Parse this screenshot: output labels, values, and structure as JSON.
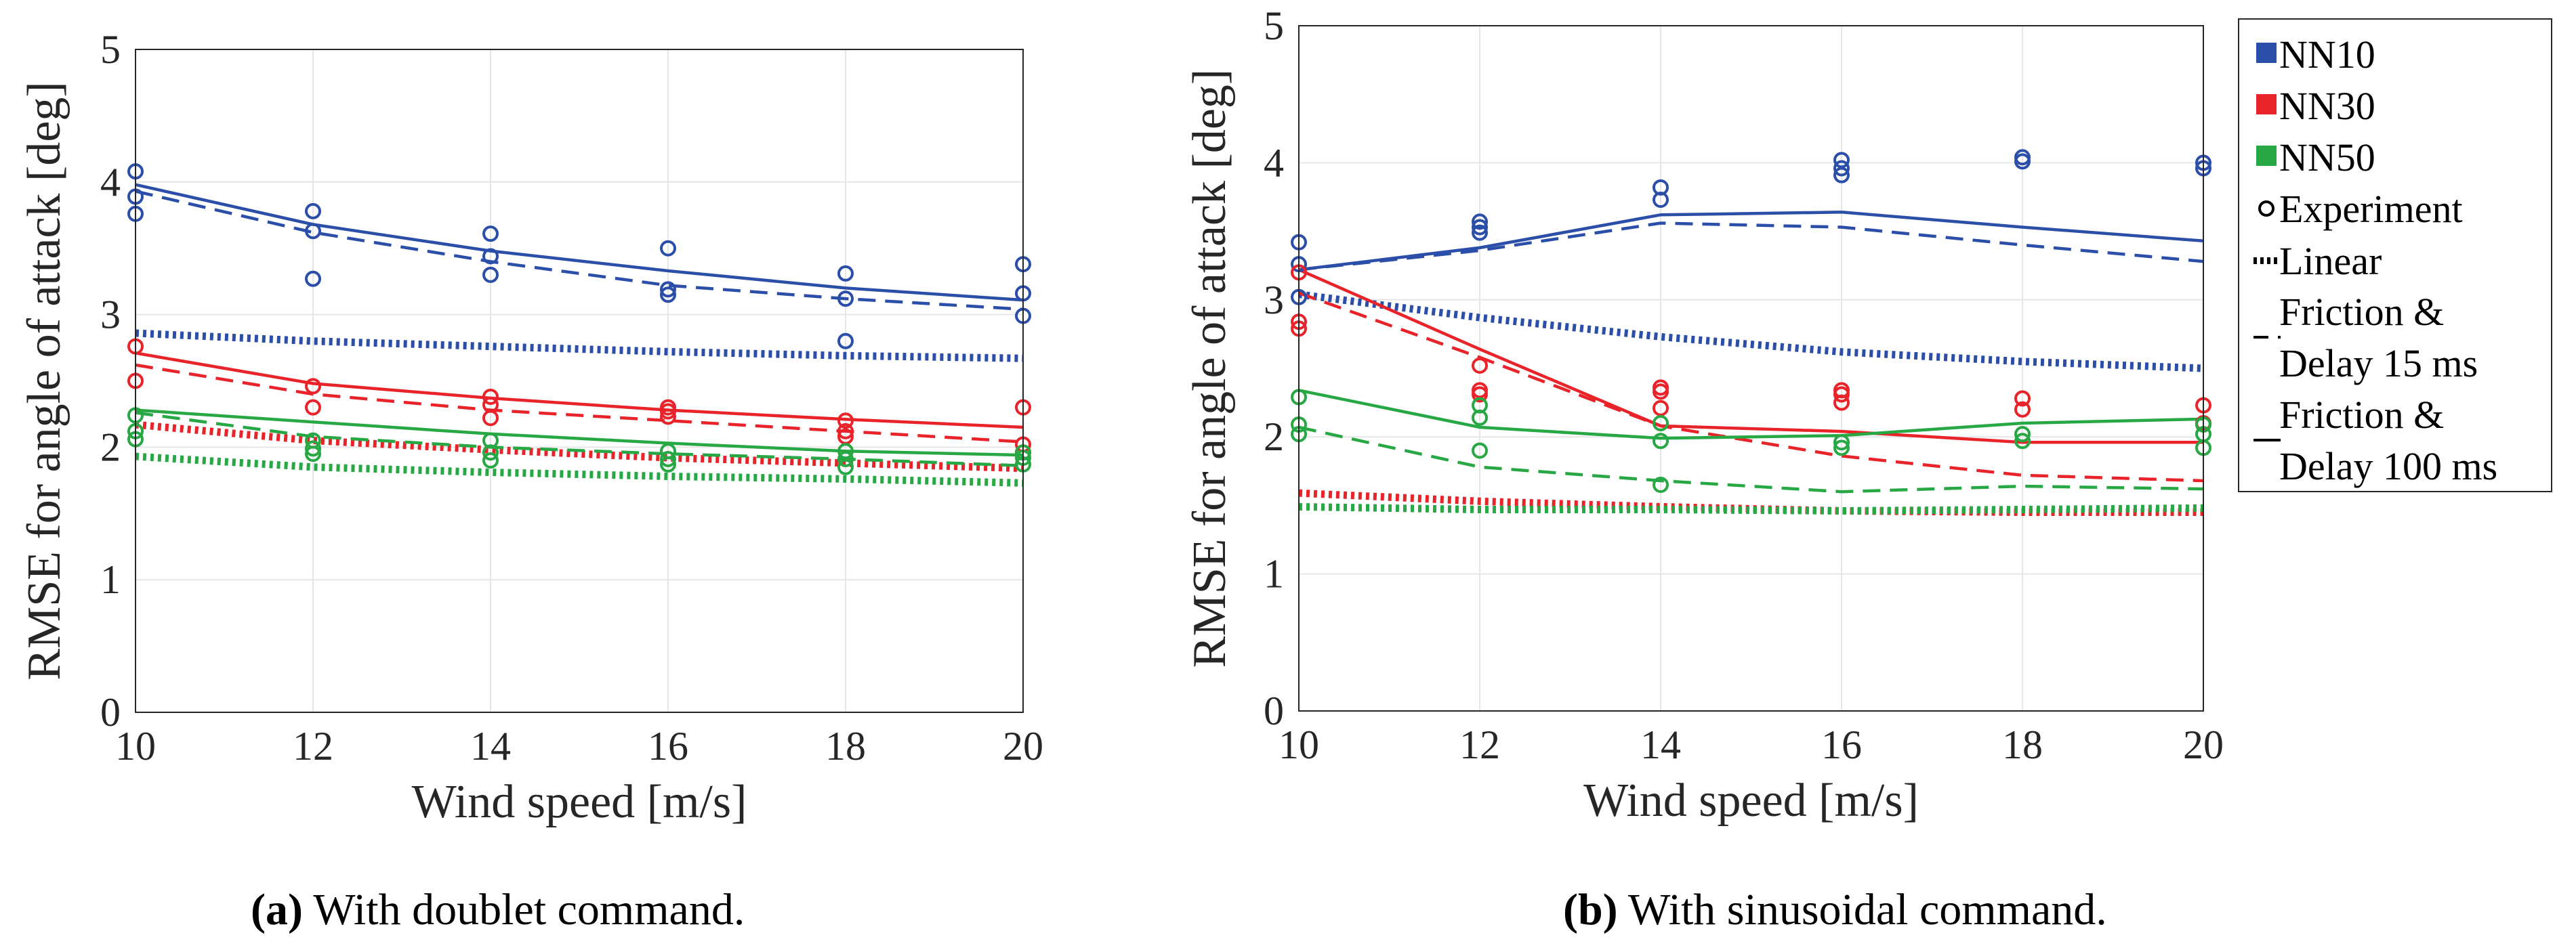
{
  "chart_data": [
    {
      "type": "line",
      "xlabel": "Wind speed [m/s]",
      "ylabel": "RMSE for angle of attack [deg]",
      "xlim": [
        10,
        20
      ],
      "ylim": [
        0,
        5
      ],
      "xticks": [
        "10",
        "12",
        "14",
        "16",
        "18",
        "20"
      ],
      "yticks": [
        "0",
        "1",
        "2",
        "3",
        "4",
        "5"
      ],
      "caption_tag": "(a)",
      "caption_text": " With doublet command.",
      "x": [
        10,
        12,
        14,
        16,
        18,
        20
      ],
      "series": [
        {
          "model": "NN10",
          "kind": "Linear",
          "values": [
            2.86,
            2.8,
            2.76,
            2.72,
            2.69,
            2.67
          ]
        },
        {
          "model": "NN10",
          "kind": "Friction & Delay 15 ms",
          "values": [
            3.93,
            3.62,
            3.4,
            3.22,
            3.12,
            3.04
          ]
        },
        {
          "model": "NN10",
          "kind": "Friction & Delay 100 ms",
          "values": [
            3.98,
            3.68,
            3.48,
            3.33,
            3.2,
            3.11
          ]
        },
        {
          "model": "NN30",
          "kind": "Linear",
          "values": [
            2.17,
            2.05,
            1.98,
            1.92,
            1.88,
            1.84
          ]
        },
        {
          "model": "NN30",
          "kind": "Friction & Delay 15 ms",
          "values": [
            2.62,
            2.4,
            2.28,
            2.2,
            2.12,
            2.04
          ]
        },
        {
          "model": "NN30",
          "kind": "Friction & Delay 100 ms",
          "values": [
            2.71,
            2.48,
            2.37,
            2.28,
            2.21,
            2.15
          ]
        },
        {
          "model": "NN50",
          "kind": "Linear",
          "values": [
            1.93,
            1.85,
            1.81,
            1.78,
            1.76,
            1.73
          ]
        },
        {
          "model": "NN50",
          "kind": "Friction & Delay 15 ms",
          "values": [
            2.26,
            2.08,
            2.0,
            1.95,
            1.91,
            1.86
          ]
        },
        {
          "model": "NN50",
          "kind": "Friction & Delay 100 ms",
          "values": [
            2.28,
            2.19,
            2.1,
            2.03,
            1.97,
            1.94
          ]
        }
      ],
      "experiments": [
        {
          "model": "NN10",
          "points": [
            [
              10,
              4.08
            ],
            [
              10,
              3.89
            ],
            [
              10,
              3.76
            ],
            [
              12,
              3.78
            ],
            [
              12,
              3.63
            ],
            [
              12,
              3.27
            ],
            [
              14,
              3.61
            ],
            [
              14,
              3.44
            ],
            [
              14,
              3.3
            ],
            [
              16,
              3.5
            ],
            [
              16,
              3.19
            ],
            [
              16,
              3.15
            ],
            [
              18,
              3.31
            ],
            [
              18,
              3.12
            ],
            [
              18,
              2.8
            ],
            [
              20,
              3.38
            ],
            [
              20,
              3.16
            ],
            [
              20,
              2.99
            ]
          ]
        },
        {
          "model": "NN30",
          "points": [
            [
              10,
              2.76
            ],
            [
              10,
              2.5
            ],
            [
              12,
              2.46
            ],
            [
              12,
              2.3
            ],
            [
              14,
              2.38
            ],
            [
              14,
              2.32
            ],
            [
              14,
              2.22
            ],
            [
              16,
              2.3
            ],
            [
              16,
              2.27
            ],
            [
              16,
              2.23
            ],
            [
              18,
              2.2
            ],
            [
              18,
              2.12
            ],
            [
              18,
              2.08
            ],
            [
              20,
              2.3
            ],
            [
              20,
              2.02
            ],
            [
              20,
              1.96
            ]
          ]
        },
        {
          "model": "NN50",
          "points": [
            [
              10,
              2.24
            ],
            [
              10,
              2.12
            ],
            [
              10,
              2.06
            ],
            [
              12,
              2.05
            ],
            [
              12,
              1.99
            ],
            [
              12,
              1.95
            ],
            [
              14,
              2.05
            ],
            [
              14,
              1.96
            ],
            [
              14,
              1.9
            ],
            [
              16,
              1.97
            ],
            [
              16,
              1.91
            ],
            [
              16,
              1.87
            ],
            [
              18,
              1.97
            ],
            [
              18,
              1.91
            ],
            [
              18,
              1.85
            ],
            [
              20,
              1.96
            ],
            [
              20,
              1.92
            ],
            [
              20,
              1.87
            ]
          ]
        }
      ]
    },
    {
      "type": "line",
      "xlabel": "Wind speed [m/s]",
      "ylabel": "RMSE for angle of attack [deg]",
      "xlim": [
        10,
        20
      ],
      "ylim": [
        0,
        5
      ],
      "xticks": [
        "10",
        "12",
        "14",
        "16",
        "18",
        "20"
      ],
      "yticks": [
        "0",
        "1",
        "2",
        "3",
        "4",
        "5"
      ],
      "caption_tag": "(b)",
      "caption_text": " With sinusoidal command.",
      "x": [
        10,
        12,
        14,
        16,
        18,
        20
      ],
      "series": [
        {
          "model": "NN10",
          "kind": "Linear",
          "values": [
            3.04,
            2.87,
            2.73,
            2.62,
            2.55,
            2.5
          ]
        },
        {
          "model": "NN10",
          "kind": "Friction & Delay 15 ms",
          "values": [
            3.22,
            3.36,
            3.56,
            3.53,
            3.4,
            3.28
          ]
        },
        {
          "model": "NN10",
          "kind": "Friction & Delay 100 ms",
          "values": [
            3.22,
            3.38,
            3.62,
            3.64,
            3.53,
            3.43
          ]
        },
        {
          "model": "NN30",
          "kind": "Linear",
          "values": [
            1.59,
            1.53,
            1.49,
            1.46,
            1.45,
            1.45
          ]
        },
        {
          "model": "NN30",
          "kind": "Friction & Delay 15 ms",
          "values": [
            3.05,
            2.58,
            2.08,
            1.86,
            1.72,
            1.68
          ]
        },
        {
          "model": "NN30",
          "kind": "Friction & Delay 100 ms",
          "values": [
            3.22,
            2.64,
            2.08,
            2.04,
            1.96,
            1.96
          ]
        },
        {
          "model": "NN50",
          "kind": "Linear",
          "values": [
            1.49,
            1.47,
            1.47,
            1.46,
            1.47,
            1.48
          ]
        },
        {
          "model": "NN50",
          "kind": "Friction & Delay 15 ms",
          "values": [
            2.07,
            1.78,
            1.68,
            1.6,
            1.64,
            1.62
          ]
        },
        {
          "model": "NN50",
          "kind": "Friction & Delay 100 ms",
          "values": [
            2.34,
            2.07,
            1.99,
            2.01,
            2.1,
            2.13
          ]
        }
      ],
      "experiments": [
        {
          "model": "NN10",
          "points": [
            [
              10,
              3.42
            ],
            [
              10,
              3.26
            ],
            [
              10,
              3.02
            ],
            [
              12,
              3.57
            ],
            [
              12,
              3.53
            ],
            [
              12,
              3.49
            ],
            [
              14,
              3.82
            ],
            [
              14,
              3.73
            ],
            [
              16,
              4.02
            ],
            [
              16,
              3.96
            ],
            [
              16,
              3.91
            ],
            [
              18,
              4.04
            ],
            [
              18,
              4.01
            ],
            [
              20,
              4.0
            ],
            [
              20,
              3.96
            ]
          ]
        },
        {
          "model": "NN30",
          "points": [
            [
              10,
              3.2
            ],
            [
              10,
              2.84
            ],
            [
              10,
              2.79
            ],
            [
              12,
              2.52
            ],
            [
              12,
              2.34
            ],
            [
              12,
              2.31
            ],
            [
              14,
              2.36
            ],
            [
              14,
              2.33
            ],
            [
              14,
              2.21
            ],
            [
              16,
              2.34
            ],
            [
              16,
              2.31
            ],
            [
              16,
              2.25
            ],
            [
              18,
              2.28
            ],
            [
              18,
              2.2
            ],
            [
              20,
              2.23
            ],
            [
              20,
              2.1
            ]
          ]
        },
        {
          "model": "NN50",
          "points": [
            [
              10,
              2.29
            ],
            [
              10,
              2.09
            ],
            [
              10,
              2.02
            ],
            [
              12,
              2.23
            ],
            [
              12,
              2.14
            ],
            [
              12,
              1.9
            ],
            [
              14,
              2.1
            ],
            [
              14,
              1.97
            ],
            [
              14,
              1.65
            ],
            [
              16,
              1.96
            ],
            [
              16,
              1.92
            ],
            [
              18,
              2.02
            ],
            [
              18,
              1.97
            ],
            [
              20,
              2.09
            ],
            [
              20,
              2.02
            ],
            [
              20,
              1.92
            ]
          ]
        }
      ]
    }
  ],
  "legend": {
    "entries": [
      {
        "label": "NN10",
        "kind": "swatch",
        "color": "#2b4ea8"
      },
      {
        "label": "NN30",
        "kind": "swatch",
        "color": "#e8242a"
      },
      {
        "label": "NN50",
        "kind": "swatch",
        "color": "#27a844"
      },
      {
        "label": "Experiment",
        "kind": "marker"
      },
      {
        "label": "Linear",
        "kind": "dotted"
      },
      {
        "label": "Friction &",
        "label2": "Delay 15 ms",
        "kind": "dashed"
      },
      {
        "label": "Friction &",
        "label2": "Delay 100 ms",
        "kind": "solid"
      }
    ]
  },
  "colors": {
    "NN10": "#2b4ea8",
    "NN30": "#e8242a",
    "NN50": "#27a844"
  }
}
